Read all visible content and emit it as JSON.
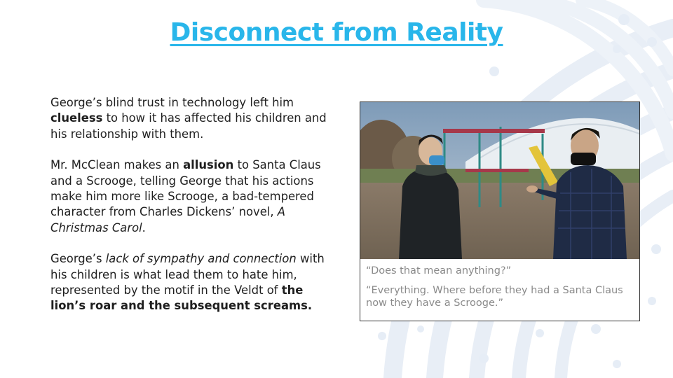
{
  "slide": {
    "title": "Disconnect from Reality",
    "paragraphs": [
      {
        "segments": [
          {
            "text": "George’s blind trust in technology left him ",
            "style": "normal"
          },
          {
            "text": "clueless",
            "style": "bold"
          },
          {
            "text": " to how it has affected his children and his relationship with them.",
            "style": "normal"
          }
        ]
      },
      {
        "segments": [
          {
            "text": "Mr. McClean makes an ",
            "style": "normal"
          },
          {
            "text": "allusion",
            "style": "bold"
          },
          {
            "text": " to Santa Claus and a Scrooge, telling George that his actions make him more like Scrooge, a bad-tempered character from Charles Dickens’ novel, ",
            "style": "normal"
          },
          {
            "text": "A Christmas Carol",
            "style": "italic"
          },
          {
            "text": ".",
            "style": "normal"
          }
        ]
      },
      {
        "segments": [
          {
            "text": "George’s ",
            "style": "normal"
          },
          {
            "text": "lack of sympathy and connection",
            "style": "italic"
          },
          {
            "text": " with his children is what lead them to hate him, represented by the motif in the Veldt of ",
            "style": "normal"
          },
          {
            "text": "the lion’s roar and the subsequent screams.",
            "style": "bold"
          }
        ]
      }
    ],
    "photo": {
      "captions": [
        "“Does that mean anything?”",
        "“Everything. Where before they had a Santa Claus now they have a Scrooge.”"
      ]
    },
    "colors": {
      "title": "#29b6ea",
      "text": "#1f1f1f",
      "caption": "#8a8a8a",
      "decoration": "#e6edf6"
    }
  }
}
